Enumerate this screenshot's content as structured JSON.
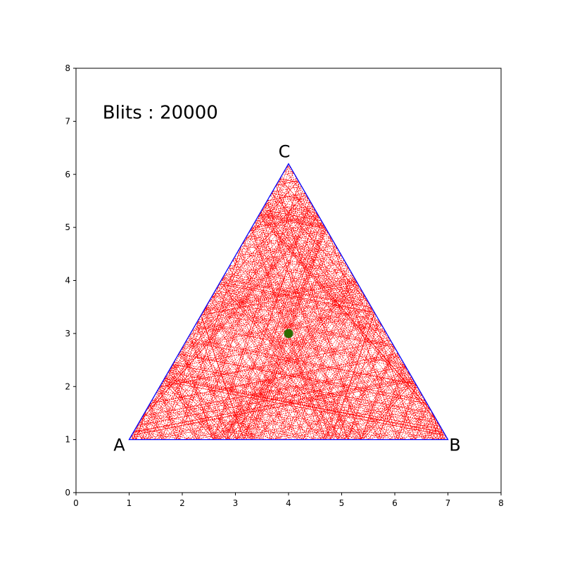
{
  "chart_data": {
    "type": "line",
    "title": "",
    "xlabel": "",
    "ylabel": "",
    "xlim": [
      0,
      8
    ],
    "ylim": [
      0,
      8
    ],
    "x_ticks": [
      "0",
      "1",
      "2",
      "3",
      "4",
      "5",
      "6",
      "7",
      "8"
    ],
    "y_ticks": [
      "0",
      "1",
      "2",
      "3",
      "4",
      "5",
      "6",
      "7",
      "8"
    ],
    "grid": false,
    "annotation": {
      "text": "Blits : 20000",
      "x": 0.5,
      "y": 7.05
    },
    "triangle": {
      "color": "#0000ff",
      "vertices": [
        {
          "label": "A",
          "x": 1,
          "y": 1
        },
        {
          "label": "B",
          "x": 7,
          "y": 1
        },
        {
          "label": "C",
          "x": 4,
          "y": 6.2
        }
      ]
    },
    "start_point": {
      "x": 4,
      "y": 3,
      "color": "#2e6b00"
    },
    "bounce_path": {
      "color": "#ff0000",
      "style": "dotted",
      "count": 20000
    }
  }
}
